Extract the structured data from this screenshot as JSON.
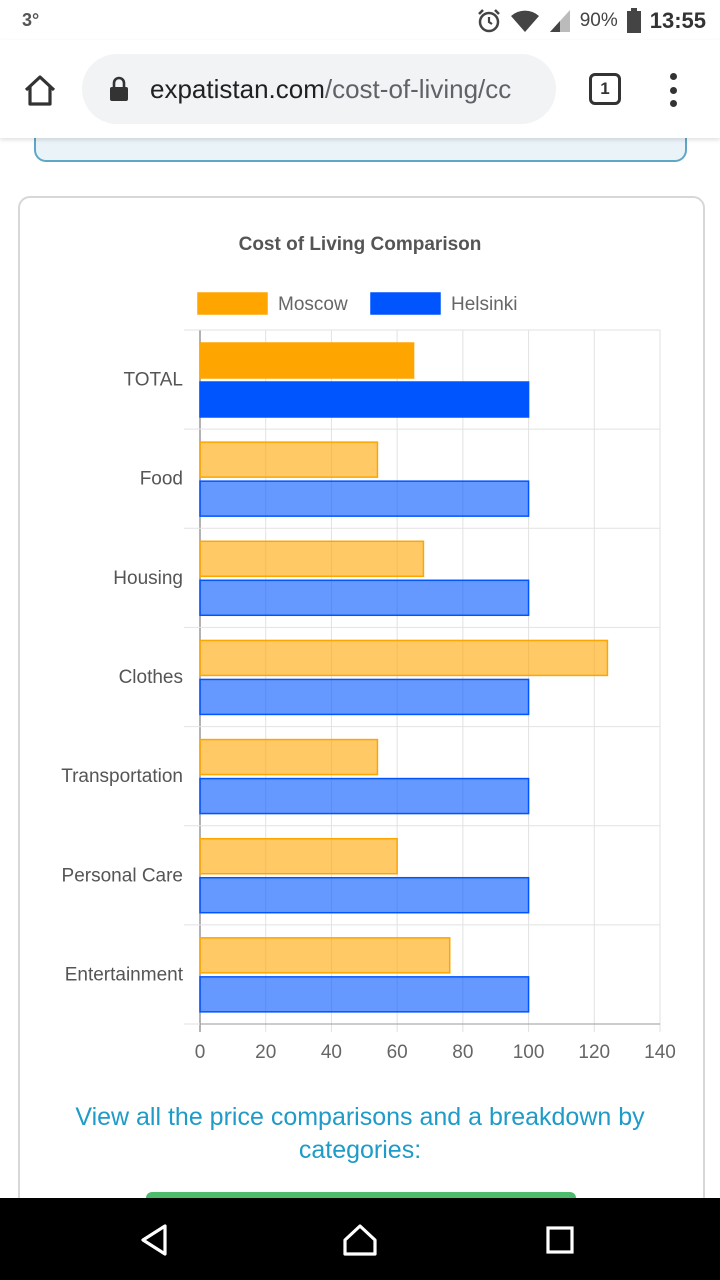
{
  "status_bar": {
    "temperature": "3°",
    "battery_percent": "90%",
    "time": "13:55"
  },
  "browser": {
    "url_domain": "expatistan.com",
    "url_path": "/cost-of-living/cc",
    "tab_count": "1"
  },
  "icons": {
    "home": "home-icon",
    "lock": "lock-icon",
    "tabs": "tabs-icon",
    "menu": "more-vert-icon",
    "alarm": "alarm-icon",
    "wifi": "wifi-icon",
    "signal": "signal-icon",
    "battery": "battery-icon",
    "back": "back-icon",
    "nav_home": "nav-home-icon",
    "recents": "recents-icon"
  },
  "page": {
    "compare_link": "View all the price comparisons and a breakdown by categories:"
  },
  "chart_data": {
    "type": "bar",
    "orientation": "horizontal",
    "title": "Cost of Living Comparison",
    "categories": [
      "TOTAL",
      "Food",
      "Housing",
      "Clothes",
      "Transportation",
      "Personal Care",
      "Entertainment"
    ],
    "series": [
      {
        "name": "Moscow",
        "color": "#ffa500",
        "values": [
          65,
          54,
          68,
          124,
          54,
          60,
          76
        ]
      },
      {
        "name": "Helsinki",
        "color": "#0055ff",
        "values": [
          100,
          100,
          100,
          100,
          100,
          100,
          100
        ]
      }
    ],
    "xticks": [
      0,
      20,
      40,
      60,
      80,
      100,
      120,
      140
    ],
    "xlim": [
      0,
      140
    ],
    "grid": true,
    "legend_position": "top"
  }
}
